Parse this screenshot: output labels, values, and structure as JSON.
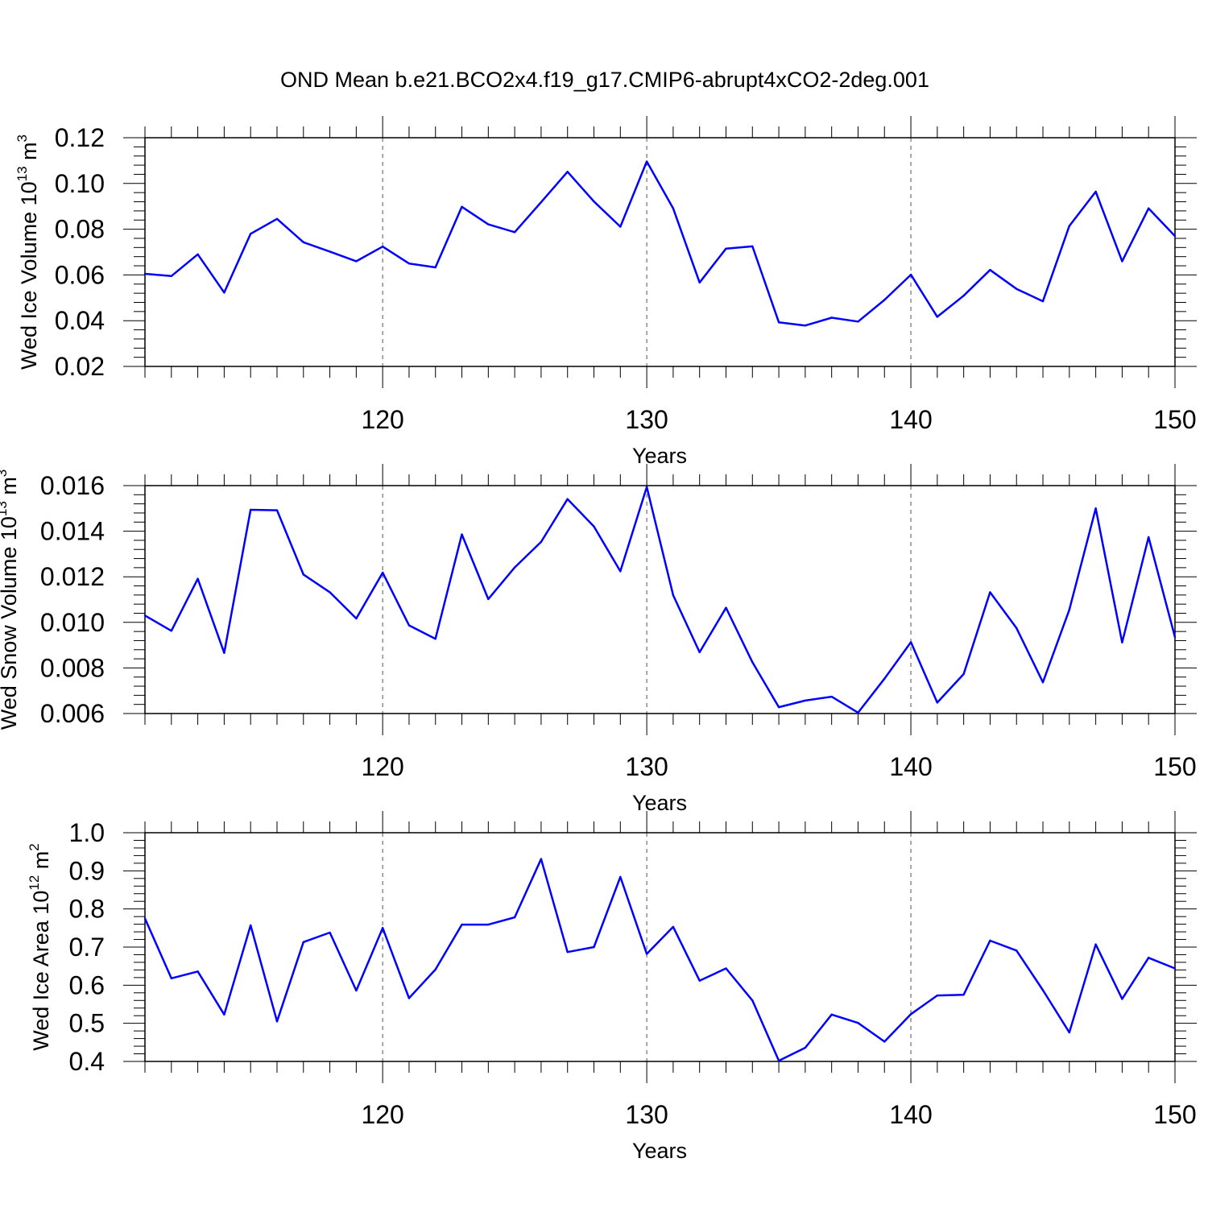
{
  "figure": {
    "title": "OND Mean b.e21.BCO2x4.f19_g17.CMIP6-abrupt4xCO2-2deg.001"
  },
  "colors": {
    "line": "#0000ff",
    "axis": "#000000",
    "grid": "#555555",
    "background": "#ffffff"
  },
  "chart_data": [
    {
      "type": "line",
      "title": "",
      "xlabel": "Years",
      "ylabel": {
        "text": "Wed Ice Volume 10",
        "exp": "13",
        "unit": " m",
        "unit_exp": "3"
      },
      "xlim": [
        111,
        150
      ],
      "ylim": [
        0.02,
        0.12
      ],
      "xticks": [
        120,
        130,
        140,
        150
      ],
      "xtick_labels": [
        "120",
        "130",
        "140",
        "150"
      ],
      "yticks": [
        0.02,
        0.04,
        0.06,
        0.08,
        0.1,
        0.12
      ],
      "ytick_labels": [
        "0.02",
        "0.04",
        "0.06",
        "0.08",
        "0.10",
        "0.12"
      ],
      "grid": "vertical dashed at major x ticks",
      "x": [
        111,
        112,
        113,
        114,
        115,
        116,
        117,
        118,
        119,
        120,
        121,
        122,
        123,
        124,
        125,
        126,
        127,
        128,
        129,
        130,
        131,
        132,
        133,
        134,
        135,
        136,
        137,
        138,
        139,
        140,
        141,
        142,
        143,
        144,
        145,
        146,
        147,
        148,
        149,
        150
      ],
      "series": [
        {
          "values": [
            0.0605,
            0.0595,
            0.069,
            0.0523,
            0.078,
            0.0845,
            0.0743,
            0.0702,
            0.066,
            0.0724,
            0.065,
            0.0633,
            0.0898,
            0.0821,
            0.0787,
            0.0918,
            0.1051,
            0.0921,
            0.0811,
            0.1096,
            0.0891,
            0.0567,
            0.0715,
            0.0725,
            0.0393,
            0.0379,
            0.0413,
            0.0396,
            0.0491,
            0.0601,
            0.0417,
            0.0509,
            0.0622,
            0.0539,
            0.0485,
            0.0814,
            0.0964,
            0.066,
            0.0891,
            0.077
          ]
        }
      ]
    },
    {
      "type": "line",
      "title": "",
      "xlabel": "Years",
      "ylabel": {
        "text": "Wed Snow Volume 10",
        "exp": "13",
        "unit": " m",
        "unit_exp": "3"
      },
      "xlim": [
        111,
        150
      ],
      "ylim": [
        0.006,
        0.016
      ],
      "xticks": [
        120,
        130,
        140,
        150
      ],
      "xtick_labels": [
        "120",
        "130",
        "140",
        "150"
      ],
      "yticks": [
        0.006,
        0.008,
        0.01,
        0.012,
        0.014,
        0.016
      ],
      "ytick_labels": [
        "0.006",
        "0.008",
        "0.010",
        "0.012",
        "0.014",
        "0.016"
      ],
      "grid": "vertical dashed at major x ticks",
      "x": [
        111,
        112,
        113,
        114,
        115,
        116,
        117,
        118,
        119,
        120,
        121,
        122,
        123,
        124,
        125,
        126,
        127,
        128,
        129,
        130,
        131,
        132,
        133,
        134,
        135,
        136,
        137,
        138,
        139,
        140,
        141,
        142,
        143,
        144,
        145,
        146,
        147,
        148,
        149,
        150
      ],
      "series": [
        {
          "values": [
            0.0103,
            0.00963,
            0.01191,
            0.00866,
            0.01494,
            0.01492,
            0.0121,
            0.01132,
            0.01017,
            0.01218,
            0.00987,
            0.00928,
            0.01386,
            0.01102,
            0.01241,
            0.01353,
            0.01541,
            0.01421,
            0.01224,
            0.01594,
            0.01119,
            0.00869,
            0.01064,
            0.00825,
            0.00628,
            0.00657,
            0.00674,
            0.00604,
            0.00753,
            0.00913,
            0.00648,
            0.00773,
            0.01132,
            0.00975,
            0.00737,
            0.01055,
            0.015,
            0.00912,
            0.01374,
            0.00935
          ]
        }
      ]
    },
    {
      "type": "line",
      "title": "",
      "xlabel": "Years",
      "ylabel": {
        "text": "Wed Ice Area 10",
        "exp": "12",
        "unit": " m",
        "unit_exp": "2"
      },
      "xlim": [
        111,
        150
      ],
      "ylim": [
        0.4,
        1.0
      ],
      "xticks": [
        120,
        130,
        140,
        150
      ],
      "xtick_labels": [
        "120",
        "130",
        "140",
        "150"
      ],
      "yticks": [
        0.4,
        0.5,
        0.6,
        0.7,
        0.8,
        0.9,
        1.0
      ],
      "ytick_labels": [
        "0.4",
        "0.5",
        "0.6",
        "0.7",
        "0.8",
        "0.9",
        "1.0"
      ],
      "grid": "vertical dashed at major x ticks",
      "x": [
        111,
        112,
        113,
        114,
        115,
        116,
        117,
        118,
        119,
        120,
        121,
        122,
        123,
        124,
        125,
        126,
        127,
        128,
        129,
        130,
        131,
        132,
        133,
        134,
        135,
        136,
        137,
        138,
        139,
        140,
        141,
        142,
        143,
        144,
        145,
        146,
        147,
        148,
        149,
        150
      ],
      "series": [
        {
          "values": [
            0.775,
            0.618,
            0.636,
            0.523,
            0.757,
            0.505,
            0.713,
            0.738,
            0.586,
            0.75,
            0.566,
            0.641,
            0.759,
            0.759,
            0.778,
            0.931,
            0.687,
            0.7,
            0.884,
            0.682,
            0.753,
            0.612,
            0.644,
            0.56,
            0.402,
            0.436,
            0.523,
            0.501,
            0.452,
            0.524,
            0.573,
            0.575,
            0.717,
            0.691,
            0.587,
            0.476,
            0.707,
            0.564,
            0.672,
            0.644
          ]
        }
      ]
    }
  ]
}
